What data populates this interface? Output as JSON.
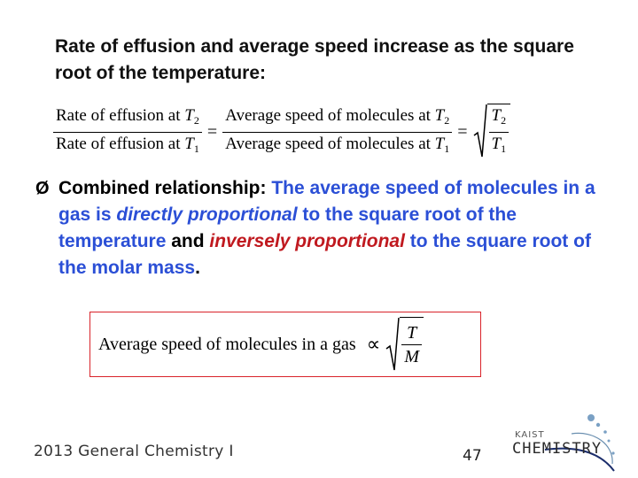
{
  "intro": {
    "text": "Rate of effusion and average speed increase as the square root of the temperature:"
  },
  "equation1": {
    "left_num_text": "Rate of effusion at ",
    "left_den_text": "Rate of effusion at ",
    "mid_num_text": "Average speed of molecules at ",
    "mid_den_text": "Average speed of molecules at ",
    "var_T": "T",
    "sub_2": "2",
    "sub_1": "1",
    "equals": "="
  },
  "bullet": {
    "arrow": "Ø",
    "p1": "Combined relationship: ",
    "p2": "The average speed of molecules in a gas is ",
    "p3": "directly proportional",
    "p4": " to the square root of the temperature ",
    "p5": "and ",
    "p6": "inversely proportional",
    "p7": " to the square root of the molar mass",
    "p8": "."
  },
  "equation2": {
    "label": "Average speed of molecules in a gas",
    "propto": "∝",
    "numerator": "T",
    "denominator": "M"
  },
  "footer": {
    "course": "2013 General Chemistry I",
    "page_number": "47"
  },
  "logo": {
    "small": "KAIST",
    "big": "CHEMISTRY"
  },
  "colors": {
    "blue": "#2b4fd6",
    "red": "#c0191f",
    "box_border": "#d9232a"
  }
}
